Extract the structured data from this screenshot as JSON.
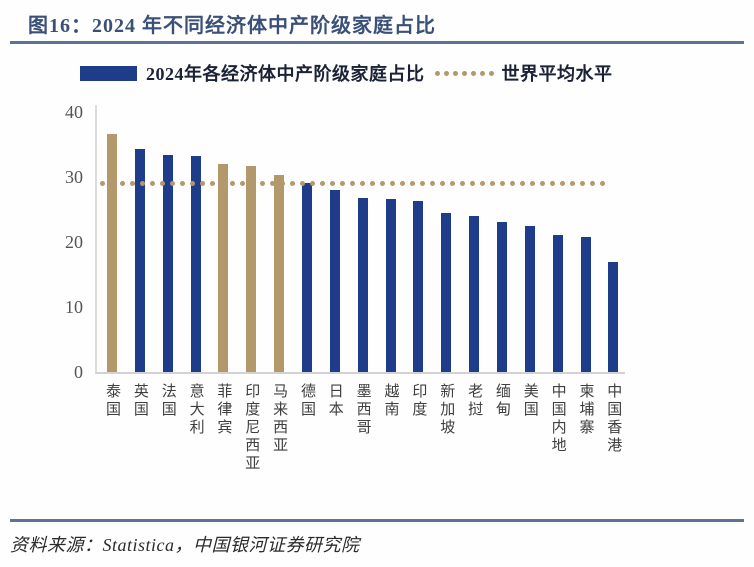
{
  "page": {
    "title": "图16：2024 年不同经济体中产阶级家庭占比",
    "source": "资料来源：Statistica，中国银河证券研究院"
  },
  "legend": {
    "bars_label": "2024年各经济体中产阶级家庭占比",
    "line_label": "世界平均水平"
  },
  "colors": {
    "navy_bar": "#1f3c8b",
    "gold_bar": "#b3986b",
    "dotted_line": "#b3986b",
    "title_blue": "#3a5077",
    "rule_slate": "#5d7391",
    "axis_text": "#555555"
  },
  "chart_data": {
    "type": "bar",
    "title": "2024年不同经济体中产阶级家庭占比",
    "categories": [
      "泰国",
      "英国",
      "法国",
      "意大利",
      "菲律宾",
      "印度尼西亚",
      "马来西亚",
      "德国",
      "日本",
      "墨西哥",
      "越南",
      "印度",
      "新加坡",
      "老挝",
      "缅甸",
      "美国",
      "中国内地",
      "柬埔寨",
      "中国香港"
    ],
    "values": [
      36.6,
      34.2,
      33.4,
      33.2,
      32.0,
      31.7,
      30.2,
      29.0,
      28.0,
      26.8,
      26.6,
      26.3,
      24.5,
      24.0,
      23.0,
      22.4,
      21.1,
      20.7,
      16.9
    ],
    "unit": "%",
    "highlighted_categories": [
      "泰国",
      "菲律宾",
      "印度尼西亚",
      "马来西亚"
    ],
    "reference_line": {
      "label": "世界平均水平",
      "value": 29
    },
    "xlabel": "",
    "ylabel": "",
    "yticks": [
      0,
      10,
      20,
      30,
      40
    ],
    "ylim": [
      0,
      41
    ],
    "grid": false,
    "legend_position": "top"
  }
}
